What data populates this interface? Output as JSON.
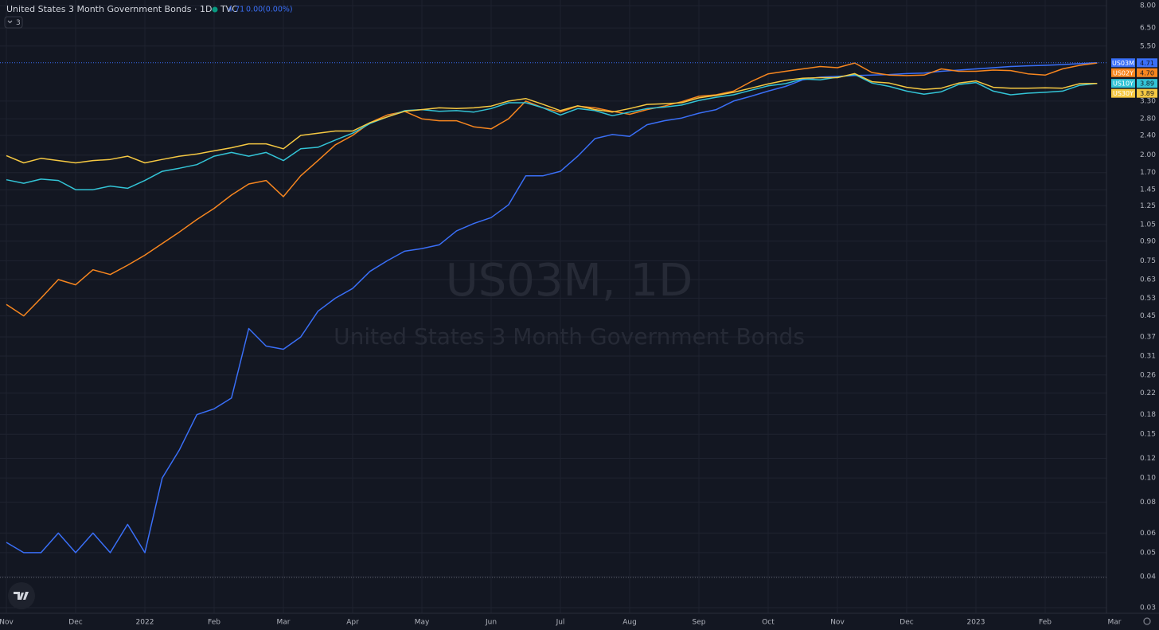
{
  "chart_data": {
    "type": "line",
    "title": "United States 3 Month Government Bonds · 1D · TVC",
    "header_values": {
      "last": "4.71",
      "change": "0.00",
      "change_pct": "(0.00%)"
    },
    "indicator_count": "3",
    "watermark": {
      "symbol": "US03M, 1D",
      "description": "United States 3 Month Government Bonds"
    },
    "log_scale": true,
    "grid": true,
    "ylim": [
      0.0285,
      8.43
    ],
    "yticks": [
      {
        "value": 8,
        "label": "8.00"
      },
      {
        "value": 6.5,
        "label": "6.50"
      },
      {
        "value": 5.5,
        "label": "5.50"
      },
      {
        "value": 3.3,
        "label": "3.30"
      },
      {
        "value": 2.8,
        "label": "2.80"
      },
      {
        "value": 2.4,
        "label": "2.40"
      },
      {
        "value": 2,
        "label": "2.00"
      },
      {
        "value": 1.7,
        "label": "1.70"
      },
      1.45,
      1.25,
      1.05,
      {
        "value": 0.9,
        "label": "0.90"
      },
      0.75,
      0.63,
      0.53,
      0.45,
      0.37,
      0.31,
      0.26,
      0.22,
      0.18,
      0.15,
      0.12,
      {
        "value": 0.1,
        "label": "0.10"
      },
      0.08,
      0.06,
      0.05,
      0.04,
      0.03
    ],
    "xlim": [
      -0.092,
      15.885
    ],
    "xticks": [
      {
        "value": 0,
        "label": "Nov"
      },
      {
        "value": 1,
        "label": "Dec"
      },
      {
        "value": 2,
        "label": "2022"
      },
      {
        "value": 3,
        "label": "Feb"
      },
      {
        "value": 4,
        "label": "Mar"
      },
      {
        "value": 5,
        "label": "Apr"
      },
      {
        "value": 6,
        "label": "May"
      },
      {
        "value": 7,
        "label": "Jun"
      },
      {
        "value": 8,
        "label": "Jul"
      },
      {
        "value": 9,
        "label": "Aug"
      },
      {
        "value": 10,
        "label": "Sep"
      },
      {
        "value": 11,
        "label": "Oct"
      },
      {
        "value": 12,
        "label": "Nov"
      },
      {
        "value": 13,
        "label": "Dec"
      },
      {
        "value": 14,
        "label": "2023"
      },
      {
        "value": 15,
        "label": "Feb"
      },
      {
        "value": 16,
        "label": "Mar"
      }
    ],
    "x": [
      0,
      0.25,
      0.5,
      0.75,
      1,
      1.25,
      1.5,
      1.75,
      2,
      2.25,
      2.5,
      2.75,
      3,
      3.25,
      3.5,
      3.75,
      4,
      4.25,
      4.5,
      4.75,
      5,
      5.25,
      5.5,
      5.75,
      6,
      6.25,
      6.5,
      6.75,
      7,
      7.25,
      7.5,
      7.75,
      8,
      8.25,
      8.5,
      8.75,
      9,
      9.25,
      9.5,
      9.75,
      10,
      10.25,
      10.5,
      10.75,
      11,
      11.25,
      11.5,
      11.75,
      12,
      12.25,
      12.5,
      12.75,
      13,
      13.25,
      13.5,
      13.75,
      14,
      14.25,
      14.5,
      14.75,
      15,
      15.25,
      15.5,
      15.75
    ],
    "series": [
      {
        "name": "US03M",
        "color": "#3a6ff7",
        "last": {
          "value": 4.71,
          "label": "4.71"
        },
        "price_line": true,
        "values": [
          0.055,
          0.05,
          0.05,
          0.06,
          0.05,
          0.06,
          0.05,
          0.065,
          0.05,
          0.1,
          0.13,
          0.18,
          0.19,
          0.21,
          0.4,
          0.34,
          0.33,
          0.37,
          0.47,
          0.53,
          0.58,
          0.68,
          0.75,
          0.82,
          0.84,
          0.87,
          0.99,
          1.06,
          1.12,
          1.26,
          1.65,
          1.65,
          1.72,
          1.98,
          2.33,
          2.42,
          2.38,
          2.65,
          2.75,
          2.82,
          2.95,
          3.05,
          3.3,
          3.45,
          3.62,
          3.78,
          4.02,
          4.12,
          4.15,
          4.18,
          4.2,
          4.22,
          4.26,
          4.28,
          4.35,
          4.4,
          4.45,
          4.5,
          4.55,
          4.58,
          4.6,
          4.63,
          4.67,
          4.71
        ]
      },
      {
        "name": "US02Y",
        "color": "#f7861f",
        "last": {
          "value": 4.7,
          "label": "4.70"
        },
        "values": [
          0.5,
          0.45,
          0.53,
          0.63,
          0.6,
          0.69,
          0.66,
          0.72,
          0.79,
          0.88,
          0.98,
          1.1,
          1.22,
          1.38,
          1.53,
          1.58,
          1.36,
          1.65,
          1.9,
          2.2,
          2.4,
          2.7,
          2.9,
          3.0,
          2.8,
          2.75,
          2.75,
          2.6,
          2.55,
          2.8,
          3.3,
          3.1,
          2.98,
          3.15,
          3.1,
          3.0,
          2.92,
          3.05,
          3.15,
          3.28,
          3.45,
          3.5,
          3.62,
          3.95,
          4.25,
          4.35,
          4.45,
          4.55,
          4.5,
          4.7,
          4.3,
          4.2,
          4.18,
          4.2,
          4.45,
          4.35,
          4.35,
          4.4,
          4.38,
          4.25,
          4.2,
          4.45,
          4.6,
          4.7
        ]
      },
      {
        "name": "US10Y",
        "color": "#33c4d6",
        "last": {
          "value": 3.89,
          "label": "3.89"
        },
        "values": [
          1.59,
          1.54,
          1.6,
          1.58,
          1.45,
          1.45,
          1.5,
          1.47,
          1.58,
          1.72,
          1.77,
          1.83,
          1.98,
          2.05,
          1.98,
          2.05,
          1.9,
          2.12,
          2.15,
          2.3,
          2.45,
          2.68,
          2.85,
          3.02,
          3.05,
          3.0,
          3.02,
          2.98,
          3.08,
          3.25,
          3.25,
          3.1,
          2.9,
          3.08,
          3.02,
          2.88,
          2.98,
          3.08,
          3.12,
          3.18,
          3.32,
          3.42,
          3.5,
          3.65,
          3.8,
          3.88,
          4.05,
          4.02,
          4.12,
          4.22,
          3.9,
          3.78,
          3.62,
          3.52,
          3.6,
          3.85,
          3.92,
          3.62,
          3.5,
          3.55,
          3.58,
          3.62,
          3.82,
          3.89
        ]
      },
      {
        "name": "US30Y",
        "color": "#f5c842",
        "last": {
          "value": 3.89,
          "label": "3.89"
        },
        "values": [
          1.99,
          1.86,
          1.94,
          1.9,
          1.86,
          1.9,
          1.92,
          1.98,
          1.86,
          1.92,
          1.98,
          2.02,
          2.08,
          2.14,
          2.22,
          2.22,
          2.12,
          2.4,
          2.45,
          2.5,
          2.5,
          2.7,
          2.85,
          3.0,
          3.05,
          3.1,
          3.08,
          3.1,
          3.15,
          3.3,
          3.38,
          3.2,
          3.02,
          3.16,
          3.05,
          2.98,
          3.08,
          3.2,
          3.22,
          3.25,
          3.4,
          3.48,
          3.58,
          3.72,
          3.87,
          4.0,
          4.08,
          4.1,
          4.1,
          4.26,
          3.95,
          3.9,
          3.75,
          3.68,
          3.72,
          3.9,
          3.98,
          3.75,
          3.72,
          3.72,
          3.73,
          3.72,
          3.88,
          3.89
        ]
      }
    ]
  }
}
